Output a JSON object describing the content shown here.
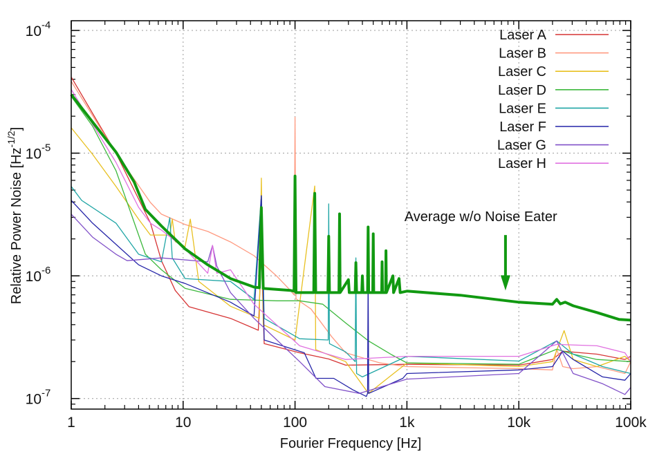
{
  "chart_data": {
    "type": "line",
    "title": "",
    "xlabel": "Fourier Frequency [Hz]",
    "ylabel": {
      "text": "Relative Power Noise [Hz",
      "exp": "-1/2",
      "close": "]"
    },
    "xscale": "log",
    "yscale": "log",
    "xlim": [
      1,
      100000
    ],
    "ylim": [
      8.2e-08,
      0.00012
    ],
    "grid": true,
    "legend_position": "top-right",
    "xticks": [
      {
        "value": 1,
        "label": "1"
      },
      {
        "value": 10,
        "label": "10"
      },
      {
        "value": 100,
        "label": "100"
      },
      {
        "value": 1000,
        "label": "1k"
      },
      {
        "value": 10000,
        "label": "10k"
      },
      {
        "value": 100000,
        "label": "100k"
      }
    ],
    "yticks": [
      {
        "value": 0.0001,
        "base": "10",
        "exp": "-4"
      },
      {
        "value": 1e-05,
        "base": "10",
        "exp": "-5"
      },
      {
        "value": 1e-06,
        "base": "10",
        "exp": "-6"
      },
      {
        "value": 1e-07,
        "base": "10",
        "exp": "-7"
      }
    ],
    "series": [
      {
        "name": "Laser A",
        "color": "#d63434",
        "width": 1.3,
        "points": [
          [
            1,
            4.17e-05
          ],
          [
            2.51,
            1e-05
          ],
          [
            5.1,
            2.7e-06
          ],
          [
            6.4,
            1.33e-06
          ],
          [
            8.5,
            7.6e-07
          ],
          [
            11.3,
            5.6e-07
          ],
          [
            26.5,
            4.5e-07
          ],
          [
            47,
            3.6e-07
          ],
          [
            50,
            1.5e-06
          ],
          [
            53,
            2.8e-07
          ],
          [
            110,
            2.36e-07
          ],
          [
            200,
            2.1e-07
          ],
          [
            283,
            1.87e-07
          ],
          [
            1000,
            1.9e-07
          ],
          [
            10000,
            1.87e-07
          ],
          [
            20000,
            2.08e-07
          ],
          [
            24700,
            2.43e-07
          ],
          [
            50000,
            2.3e-07
          ],
          [
            88700,
            2.08e-07
          ],
          [
            100000,
            2.21e-07
          ]
        ]
      },
      {
        "name": "Laser B",
        "color": "#ff9a80",
        "width": 1.3,
        "points": [
          [
            1,
            3.85e-05
          ],
          [
            2.51,
            1e-05
          ],
          [
            5.1,
            3.96e-06
          ],
          [
            6.4,
            3.18e-06
          ],
          [
            10.4,
            2.62e-06
          ],
          [
            16.6,
            2.3e-06
          ],
          [
            26.5,
            1.89e-06
          ],
          [
            43,
            1.46e-06
          ],
          [
            69,
            9.9e-07
          ],
          [
            91,
            7.6e-07
          ],
          [
            98,
            7e-07
          ],
          [
            100,
            1.96e-05
          ],
          [
            102,
            6.5e-07
          ],
          [
            139,
            5.36e-07
          ],
          [
            213,
            3.19e-07
          ],
          [
            283,
            2.36e-07
          ],
          [
            576,
            1.95e-07
          ],
          [
            1000,
            1.82e-07
          ],
          [
            10000,
            1.75e-07
          ],
          [
            20000,
            1.71e-07
          ],
          [
            21800,
            2.52e-07
          ],
          [
            24700,
            1.82e-07
          ],
          [
            30600,
            1.75e-07
          ],
          [
            50000,
            1.82e-07
          ],
          [
            88700,
            1.6e-07
          ],
          [
            100000,
            2e-07
          ]
        ]
      },
      {
        "name": "Laser C",
        "color": "#e8c020",
        "width": 1.3,
        "points": [
          [
            1,
            1.61e-05
          ],
          [
            1.55,
            9.8e-06
          ],
          [
            2.51,
            5.35e-06
          ],
          [
            4.0,
            2.9e-06
          ],
          [
            5.1,
            2.15e-06
          ],
          [
            7.6,
            2.15e-06
          ],
          [
            8.0,
            2.9e-06
          ],
          [
            8.5,
            1.9e-06
          ],
          [
            10.4,
            1.73e-06
          ],
          [
            11.6,
            2.9e-06
          ],
          [
            13.8,
            9e-07
          ],
          [
            26.5,
            5.65e-07
          ],
          [
            48,
            4.5e-07
          ],
          [
            50,
            6.25e-06
          ],
          [
            52,
            4e-07
          ],
          [
            100,
            3e-07
          ],
          [
            150,
            5.4e-06
          ],
          [
            153,
            2.5e-07
          ],
          [
            283,
            2e-07
          ],
          [
            453,
            1.1e-07
          ],
          [
            1000,
            1.95e-07
          ],
          [
            10000,
            1.82e-07
          ],
          [
            20000,
            2e-07
          ],
          [
            25400,
            3.58e-07
          ],
          [
            30600,
            2.08e-07
          ],
          [
            50000,
            1.82e-07
          ],
          [
            88700,
            2.21e-07
          ],
          [
            100000,
            2e-07
          ]
        ]
      },
      {
        "name": "Laser D",
        "color": "#3cb83c",
        "width": 1.3,
        "points": [
          [
            1,
            2.9e-05
          ],
          [
            1.55,
            1.66e-05
          ],
          [
            2.51,
            7.2e-06
          ],
          [
            4.6,
            1.5e-06
          ],
          [
            6.4,
            1.12e-06
          ],
          [
            10.4,
            7.9e-07
          ],
          [
            26.5,
            6.43e-07
          ],
          [
            69,
            6.26e-07
          ],
          [
            110,
            6.26e-07
          ],
          [
            177,
            5.87e-07
          ],
          [
            283,
            4.13e-07
          ],
          [
            453,
            2.95e-07
          ],
          [
            733,
            2.27e-07
          ],
          [
            1000,
            1.95e-07
          ],
          [
            10000,
            1.9e-07
          ],
          [
            21800,
            2.52e-07
          ],
          [
            30600,
            2.3e-07
          ],
          [
            50000,
            2.08e-07
          ],
          [
            100000,
            2e-07
          ]
        ]
      },
      {
        "name": "Laser E",
        "color": "#1fa5a5",
        "width": 1.3,
        "points": [
          [
            1,
            5.35e-06
          ],
          [
            1.24,
            4.12e-06
          ],
          [
            2.51,
            2.69e-06
          ],
          [
            4.0,
            1.5e-06
          ],
          [
            6.4,
            1.3e-06
          ],
          [
            7.6,
            2.98e-06
          ],
          [
            8.0,
            1.4e-06
          ],
          [
            10.4,
            9.5e-07
          ],
          [
            26.5,
            9e-07
          ],
          [
            43,
            6.43e-07
          ],
          [
            50,
            4.5e-06
          ],
          [
            53,
            4.5e-07
          ],
          [
            110,
            3.07e-07
          ],
          [
            198,
            3e-07
          ],
          [
            200,
            3.86e-06
          ],
          [
            203,
            2.8e-07
          ],
          [
            283,
            2.4e-07
          ],
          [
            345,
            2e-07
          ],
          [
            350,
            1.4e-06
          ],
          [
            355,
            1.6e-07
          ],
          [
            400,
            1.5e-07
          ],
          [
            1000,
            2.21e-07
          ],
          [
            10000,
            2.02e-07
          ],
          [
            21800,
            2.95e-07
          ],
          [
            30600,
            2.3e-07
          ],
          [
            56000,
            1.82e-07
          ],
          [
            100000,
            1.6e-07
          ]
        ]
      },
      {
        "name": "Laser F",
        "color": "#2424a8",
        "width": 1.3,
        "points": [
          [
            1,
            4.12e-06
          ],
          [
            1.55,
            2.69e-06
          ],
          [
            4.0,
            1.23e-06
          ],
          [
            6.4,
            1e-06
          ],
          [
            10.4,
            8.67e-07
          ],
          [
            26.5,
            6.1e-07
          ],
          [
            43,
            4.71e-07
          ],
          [
            50,
            4.5e-06
          ],
          [
            53,
            3e-07
          ],
          [
            121,
            2.36e-07
          ],
          [
            154,
            1.46e-07
          ],
          [
            222,
            1.46e-07
          ],
          [
            327,
            1.18e-07
          ],
          [
            434,
            1.04e-07
          ],
          [
            445,
            1.1e-07
          ],
          [
            450,
            1e-06
          ],
          [
            455,
            1.1e-07
          ],
          [
            920,
            1.46e-07
          ],
          [
            1000,
            1.6e-07
          ],
          [
            10000,
            1.71e-07
          ],
          [
            20000,
            1.82e-07
          ],
          [
            24700,
            2.43e-07
          ],
          [
            30600,
            2.08e-07
          ],
          [
            56000,
            1.5e-07
          ],
          [
            88700,
            1.41e-07
          ],
          [
            100000,
            1.6e-07
          ]
        ]
      },
      {
        "name": "Laser G",
        "color": "#8050c8",
        "width": 1.3,
        "points": [
          [
            1,
            3.18e-06
          ],
          [
            1.55,
            2.07e-06
          ],
          [
            2.51,
            1.5e-06
          ],
          [
            3.16,
            1.33e-06
          ],
          [
            6.4,
            1.4e-06
          ],
          [
            16.6,
            1.3e-06
          ],
          [
            18.3,
            1.77e-06
          ],
          [
            20,
            1.2e-06
          ],
          [
            26.5,
            7.3e-07
          ],
          [
            43,
            4.5e-07
          ],
          [
            110,
            2e-07
          ],
          [
            185,
            1.25e-07
          ],
          [
            376,
            1.1e-07
          ],
          [
            1000,
            1.44e-07
          ],
          [
            10000,
            1.6e-07
          ],
          [
            21800,
            2.95e-07
          ],
          [
            30600,
            1.6e-07
          ],
          [
            56000,
            1.32e-07
          ],
          [
            88700,
            1.08e-07
          ],
          [
            100000,
            1.23e-07
          ]
        ]
      },
      {
        "name": "Laser H",
        "color": "#e070e0",
        "width": 1.3,
        "points": [
          [
            1,
            3.3e-05
          ],
          [
            2.51,
            8.4e-06
          ],
          [
            4.0,
            3.62e-06
          ],
          [
            5.1,
            2.69e-06
          ],
          [
            6.4,
            2.36e-06
          ],
          [
            10.4,
            1.66e-06
          ],
          [
            16.6,
            1.05e-06
          ],
          [
            18.3,
            1.77e-06
          ],
          [
            20,
            1.05e-06
          ],
          [
            26.5,
            1.12e-06
          ],
          [
            43,
            5.87e-07
          ],
          [
            110,
            2.69e-07
          ],
          [
            283,
            2.08e-07
          ],
          [
            1000,
            2.21e-07
          ],
          [
            10000,
            2.21e-07
          ],
          [
            21800,
            2.76e-07
          ],
          [
            50000,
            2.69e-07
          ],
          [
            88700,
            2.36e-07
          ],
          [
            100000,
            2e-07
          ]
        ]
      },
      {
        "name": "",
        "color": "#119911",
        "width": 4,
        "points": [
          [
            1,
            3e-05
          ],
          [
            2.51,
            1.02e-05
          ],
          [
            3.64,
            5.85e-06
          ],
          [
            4.6,
            3.48e-06
          ],
          [
            6.4,
            2.55e-06
          ],
          [
            10.4,
            1.66e-06
          ],
          [
            16.6,
            1.23e-06
          ],
          [
            26.5,
            9.5e-07
          ],
          [
            43,
            8.1e-07
          ],
          [
            48,
            8e-07
          ],
          [
            50,
            3.6e-06
          ],
          [
            52,
            7.9e-07
          ],
          [
            91,
            7.6e-07
          ],
          [
            98,
            7.5e-07
          ],
          [
            100,
            6.5e-06
          ],
          [
            102,
            7.3e-07
          ],
          [
            147,
            7.3e-07
          ],
          [
            150,
            4.7e-06
          ],
          [
            153,
            7.3e-07
          ],
          [
            197,
            7.3e-07
          ],
          [
            200,
            2.1e-06
          ],
          [
            203,
            7.3e-07
          ],
          [
            247,
            7.3e-07
          ],
          [
            250,
            3.2e-06
          ],
          [
            253,
            7.3e-07
          ],
          [
            300,
            9.3e-07
          ],
          [
            305,
            7.3e-07
          ],
          [
            345,
            7.3e-07
          ],
          [
            350,
            1.28e-06
          ],
          [
            355,
            7.3e-07
          ],
          [
            395,
            7.3e-07
          ],
          [
            400,
            1e-06
          ],
          [
            405,
            7.3e-07
          ],
          [
            445,
            7.3e-07
          ],
          [
            450,
            2.5e-06
          ],
          [
            455,
            7.3e-07
          ],
          [
            495,
            7.3e-07
          ],
          [
            500,
            2.2e-06
          ],
          [
            505,
            7.3e-07
          ],
          [
            595,
            7.3e-07
          ],
          [
            600,
            1.3e-06
          ],
          [
            605,
            7.3e-07
          ],
          [
            645,
            7.3e-07
          ],
          [
            650,
            1.6e-06
          ],
          [
            655,
            7.3e-07
          ],
          [
            750,
            1e-06
          ],
          [
            760,
            7.3e-07
          ],
          [
            850,
            9.5e-07
          ],
          [
            870,
            7.3e-07
          ],
          [
            1000,
            7.5e-07
          ],
          [
            3000,
            6.95e-07
          ],
          [
            10000,
            6.1e-07
          ],
          [
            20000,
            5.87e-07
          ],
          [
            21800,
            6.43e-07
          ],
          [
            23500,
            5.9e-07
          ],
          [
            26000,
            6.1e-07
          ],
          [
            30600,
            5.7e-07
          ],
          [
            50000,
            5.02e-07
          ],
          [
            79000,
            4.41e-07
          ],
          [
            100000,
            4.36e-07
          ]
        ]
      }
    ],
    "annotation": {
      "text": "Average w/o Noise Eater",
      "text_at": [
        950,
        2.79e-06
      ],
      "arrow_x": 7600,
      "arrow_from": 2.15e-06,
      "arrow_to": 7.6e-07,
      "color": "#119911"
    }
  }
}
